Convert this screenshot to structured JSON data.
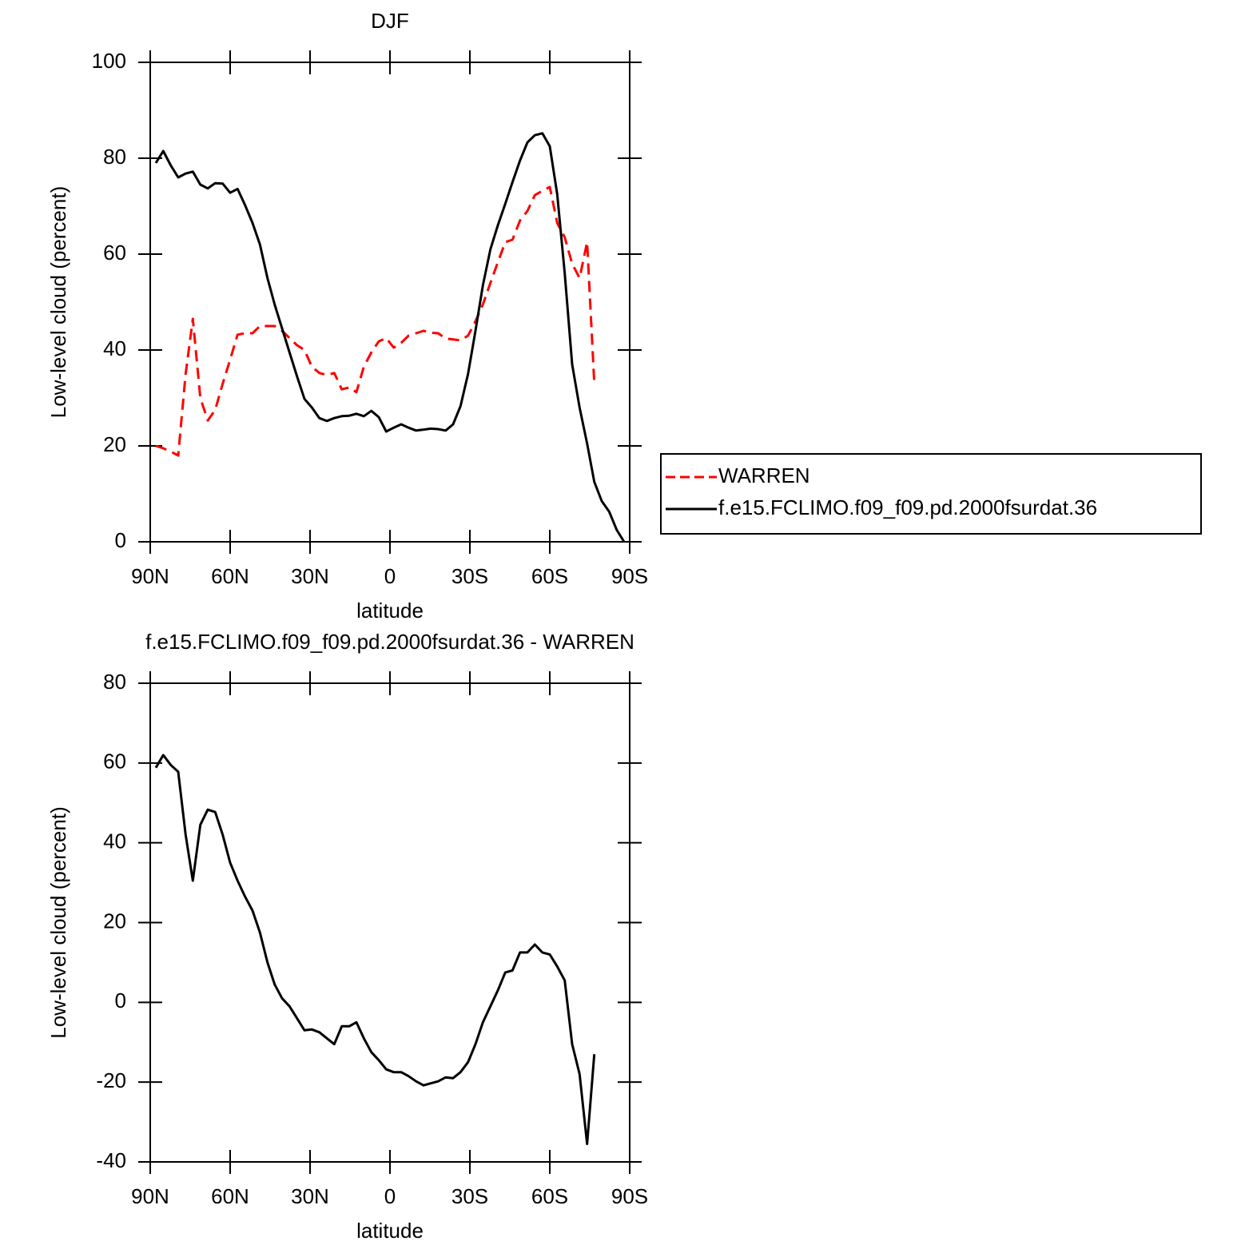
{
  "chart_data": [
    {
      "type": "line",
      "title": "DJF",
      "xlabel": "latitude",
      "ylabel": "Low-level cloud (percent)",
      "x": [
        87.9,
        85.1,
        82.3,
        79.5,
        76.7,
        74.0,
        71.2,
        68.4,
        65.6,
        62.8,
        60.0,
        57.2,
        54.4,
        51.6,
        48.8,
        46.0,
        43.3,
        40.5,
        37.7,
        34.9,
        32.1,
        29.3,
        26.5,
        23.7,
        20.9,
        18.1,
        15.3,
        12.6,
        9.8,
        7.0,
        4.2,
        1.4,
        -1.4,
        -4.2,
        -7.0,
        -9.8,
        -12.6,
        -15.3,
        -18.1,
        -20.9,
        -23.7,
        -26.5,
        -29.3,
        -32.1,
        -34.9,
        -37.7,
        -40.5,
        -43.3,
        -46.0,
        -48.8,
        -51.6,
        -54.4,
        -57.2,
        -60.0,
        -62.8,
        -65.6,
        -68.4,
        -71.2,
        -74.0,
        -76.7,
        -79.5,
        -82.3,
        -85.1,
        -87.9
      ],
      "series": [
        {
          "name": "WARREN",
          "color": "#ff0000",
          "style": "dashed",
          "values": [
            20,
            19.5,
            18.8,
            18,
            35,
            46.5,
            30,
            25.3,
            27.5,
            33,
            38,
            43.2,
            43.5,
            43.5,
            45,
            45,
            45,
            44,
            42.5,
            41,
            40,
            36.5,
            35.2,
            34.8,
            35.2,
            31.8,
            32.2,
            31.2,
            36.5,
            39.5,
            41.8,
            42.5,
            40.5,
            41.5,
            43,
            43.5,
            44,
            43.6,
            43.5,
            42.4,
            42.2,
            42,
            43,
            46,
            49.5,
            54,
            58.3,
            62.5,
            63,
            67,
            69,
            72.3,
            73.2,
            74,
            66.5,
            63.5,
            58,
            55,
            62.5,
            33,
            null,
            null,
            null,
            null
          ]
        },
        {
          "name": "f.e15.FCLIMO.f09_f09.pd.2000fsurdat.36",
          "color": "#000000",
          "style": "solid",
          "values": [
            79,
            81.5,
            78.5,
            76,
            76.8,
            77.2,
            74.5,
            73.7,
            74.8,
            74.7,
            72.8,
            73.6,
            70.2,
            66.5,
            62,
            55,
            49.5,
            44.5,
            39.5,
            34.5,
            29.8,
            28,
            25.8,
            25.2,
            25.8,
            26.2,
            26.3,
            26.7,
            26.2,
            27.3,
            26,
            23,
            23.8,
            24.5,
            23.8,
            23.2,
            23.4,
            23.6,
            23.5,
            23.2,
            24.5,
            28.3,
            35,
            44,
            53.5,
            61,
            66,
            70.5,
            75,
            79.5,
            83.3,
            84.8,
            85.2,
            82.5,
            72.5,
            56,
            37,
            28,
            20.5,
            12.5,
            8.5,
            6.3,
            2.5,
            0
          ]
        }
      ],
      "xlim": [
        90,
        -90
      ],
      "xticks": [
        {
          "value": 90,
          "label": "90N"
        },
        {
          "value": 60,
          "label": "60N"
        },
        {
          "value": 30,
          "label": "30N"
        },
        0,
        {
          "value": -30,
          "label": "30S"
        },
        {
          "value": -60,
          "label": "60S"
        },
        {
          "value": -90,
          "label": "90S"
        }
      ],
      "ylim": [
        0,
        100
      ],
      "yticks": [
        0,
        20,
        40,
        60,
        80,
        100
      ],
      "legend": "outside right"
    },
    {
      "type": "line",
      "title": "f.e15.FCLIMO.f09_f09.pd.2000fsurdat.36 - WARREN",
      "xlabel": "latitude",
      "ylabel": "Low-level cloud (percent)",
      "x": [
        87.9,
        85.1,
        82.3,
        79.5,
        76.7,
        74.0,
        71.2,
        68.4,
        65.6,
        62.8,
        60.0,
        57.2,
        54.4,
        51.6,
        48.8,
        46.0,
        43.3,
        40.5,
        37.7,
        34.9,
        32.1,
        29.3,
        26.5,
        23.7,
        20.9,
        18.1,
        15.3,
        12.6,
        9.8,
        7.0,
        4.2,
        1.4,
        -1.4,
        -4.2,
        -7.0,
        -9.8,
        -12.6,
        -15.3,
        -18.1,
        -20.9,
        -23.7,
        -26.5,
        -29.3,
        -32.1,
        -34.9,
        -37.7,
        -40.5,
        -43.3,
        -46.0,
        -48.8,
        -51.6,
        -54.4,
        -57.2,
        -60.0,
        -62.8,
        -65.6,
        -68.4,
        -71.2,
        -74.0,
        -76.7,
        -79.5,
        -82.3,
        -85.1,
        -87.9
      ],
      "series": [
        {
          "color": "#000000",
          "style": "solid",
          "values": [
            58.8,
            62,
            59.5,
            57.8,
            42,
            30.5,
            44.5,
            48.3,
            47.7,
            42,
            35,
            30.5,
            26.5,
            23,
            17.5,
            10,
            4.5,
            1,
            -1,
            -4,
            -7,
            -6.8,
            -7.5,
            -9,
            -10.5,
            -6,
            -6,
            -5,
            -9,
            -12.5,
            -14.5,
            -16.8,
            -17.5,
            -17.5,
            -18.5,
            -19.8,
            -20.8,
            -20.3,
            -19.8,
            -18.8,
            -19,
            -17.5,
            -15,
            -10.5,
            -5,
            -1,
            3,
            7.5,
            8,
            12.5,
            12.5,
            14.5,
            12.5,
            12,
            9,
            5.5,
            -10.5,
            -18,
            -35.5,
            -13,
            null,
            null,
            null,
            null
          ]
        }
      ],
      "xlim": [
        90,
        -90
      ],
      "xticks": [
        {
          "value": 90,
          "label": "90N"
        },
        {
          "value": 60,
          "label": "60N"
        },
        {
          "value": 30,
          "label": "30N"
        },
        0,
        {
          "value": -30,
          "label": "30S"
        },
        {
          "value": -60,
          "label": "60S"
        },
        {
          "value": -90,
          "label": "90S"
        }
      ],
      "ylim": [
        -40,
        80
      ],
      "yticks": [
        -40,
        -20,
        0,
        20,
        40,
        60,
        80
      ]
    }
  ]
}
